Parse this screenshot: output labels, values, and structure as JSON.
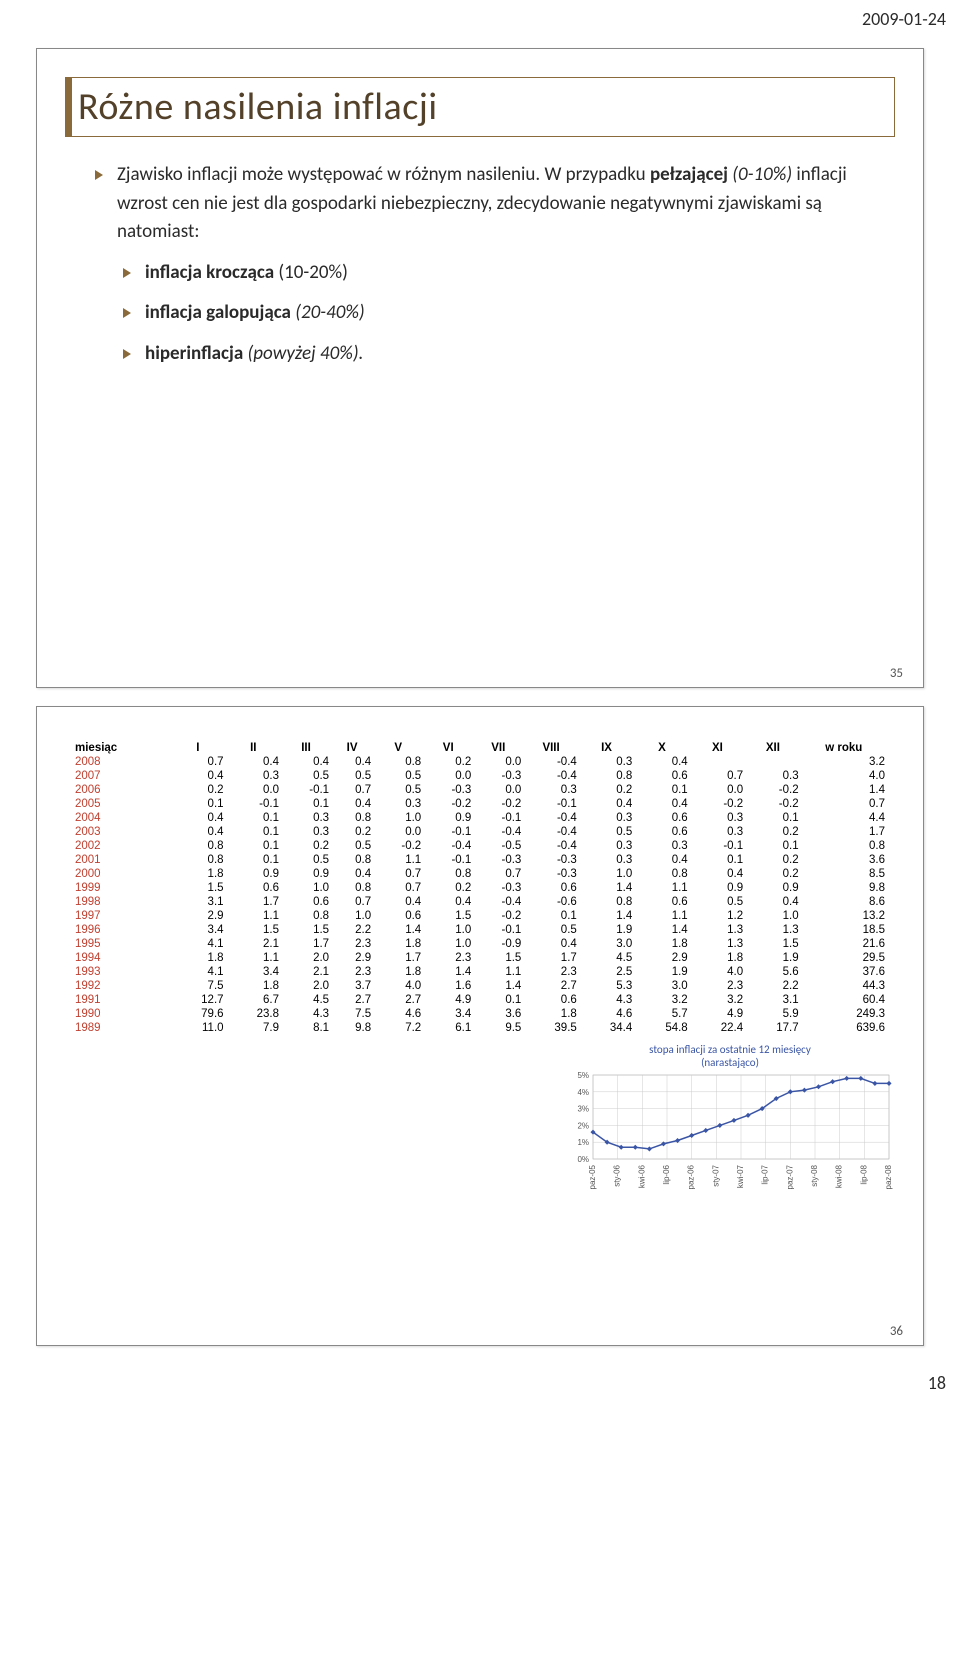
{
  "date": "2009-01-24",
  "footer_page": "18",
  "slide1": {
    "title": "Różne nasilenia inflacji",
    "intro": {
      "pre": "Zjawisko inflacji może występować w różnym nasileniu. W przypadku ",
      "b1": "pełzającej",
      "mid1": " ",
      "i1": "(0-10%)",
      "mid2": " inflacji wzrost cen nie jest dla gospodarki niebezpieczny, zdecydowanie negatywnymi zjawiskami są natomiast:"
    },
    "b1": {
      "bold": "inflacja krocząca",
      "rest": " (10-20%)"
    },
    "b2": {
      "bold": "inflacja galopująca",
      "rest_i": " (20-40%)"
    },
    "b3": {
      "bold": "hiperinflacja",
      "rest_i": " (powyżej 40%)."
    },
    "page": "35"
  },
  "slide2": {
    "page": "36",
    "table": {
      "columns": [
        "miesiąc",
        "I",
        "II",
        "III",
        "IV",
        "V",
        "VI",
        "VII",
        "VIII",
        "IX",
        "X",
        "XI",
        "XII",
        "w roku"
      ],
      "rows": [
        [
          "2008",
          "0.7",
          "0.4",
          "0.4",
          "0.4",
          "0.8",
          "0.2",
          "0.0",
          "-0.4",
          "0.3",
          "0.4",
          "",
          "",
          "3.2"
        ],
        [
          "2007",
          "0.4",
          "0.3",
          "0.5",
          "0.5",
          "0.5",
          "0.0",
          "-0.3",
          "-0.4",
          "0.8",
          "0.6",
          "0.7",
          "0.3",
          "4.0"
        ],
        [
          "2006",
          "0.2",
          "0.0",
          "-0.1",
          "0.7",
          "0.5",
          "-0.3",
          "0.0",
          "0.3",
          "0.2",
          "0.1",
          "0.0",
          "-0.2",
          "1.4"
        ],
        [
          "2005",
          "0.1",
          "-0.1",
          "0.1",
          "0.4",
          "0.3",
          "-0.2",
          "-0.2",
          "-0.1",
          "0.4",
          "0.4",
          "-0.2",
          "-0.2",
          "0.7"
        ],
        [
          "2004",
          "0.4",
          "0.1",
          "0.3",
          "0.8",
          "1.0",
          "0.9",
          "-0.1",
          "-0.4",
          "0.3",
          "0.6",
          "0.3",
          "0.1",
          "4.4"
        ],
        [
          "2003",
          "0.4",
          "0.1",
          "0.3",
          "0.2",
          "0.0",
          "-0.1",
          "-0.4",
          "-0.4",
          "0.5",
          "0.6",
          "0.3",
          "0.2",
          "1.7"
        ],
        [
          "2002",
          "0.8",
          "0.1",
          "0.2",
          "0.5",
          "-0.2",
          "-0.4",
          "-0.5",
          "-0.4",
          "0.3",
          "0.3",
          "-0.1",
          "0.1",
          "0.8"
        ],
        [
          "2001",
          "0.8",
          "0.1",
          "0.5",
          "0.8",
          "1.1",
          "-0.1",
          "-0.3",
          "-0.3",
          "0.3",
          "0.4",
          "0.1",
          "0.2",
          "3.6"
        ],
        [
          "2000",
          "1.8",
          "0.9",
          "0.9",
          "0.4",
          "0.7",
          "0.8",
          "0.7",
          "-0.3",
          "1.0",
          "0.8",
          "0.4",
          "0.2",
          "8.5"
        ],
        [
          "1999",
          "1.5",
          "0.6",
          "1.0",
          "0.8",
          "0.7",
          "0.2",
          "-0.3",
          "0.6",
          "1.4",
          "1.1",
          "0.9",
          "0.9",
          "9.8"
        ],
        [
          "1998",
          "3.1",
          "1.7",
          "0.6",
          "0.7",
          "0.4",
          "0.4",
          "-0.4",
          "-0.6",
          "0.8",
          "0.6",
          "0.5",
          "0.4",
          "8.6"
        ],
        [
          "1997",
          "2.9",
          "1.1",
          "0.8",
          "1.0",
          "0.6",
          "1.5",
          "-0.2",
          "0.1",
          "1.4",
          "1.1",
          "1.2",
          "1.0",
          "13.2"
        ],
        [
          "1996",
          "3.4",
          "1.5",
          "1.5",
          "2.2",
          "1.4",
          "1.0",
          "-0.1",
          "0.5",
          "1.9",
          "1.4",
          "1.3",
          "1.3",
          "18.5"
        ],
        [
          "1995",
          "4.1",
          "2.1",
          "1.7",
          "2.3",
          "1.8",
          "1.0",
          "-0.9",
          "0.4",
          "3.0",
          "1.8",
          "1.3",
          "1.5",
          "21.6"
        ],
        [
          "1994",
          "1.8",
          "1.1",
          "2.0",
          "2.9",
          "1.7",
          "2.3",
          "1.5",
          "1.7",
          "4.5",
          "2.9",
          "1.8",
          "1.9",
          "29.5"
        ],
        [
          "1993",
          "4.1",
          "3.4",
          "2.1",
          "2.3",
          "1.8",
          "1.4",
          "1.1",
          "2.3",
          "2.5",
          "1.9",
          "4.0",
          "5.6",
          "37.6"
        ],
        [
          "1992",
          "7.5",
          "1.8",
          "2.0",
          "3.7",
          "4.0",
          "1.6",
          "1.4",
          "2.7",
          "5.3",
          "3.0",
          "2.3",
          "2.2",
          "44.3"
        ],
        [
          "1991",
          "12.7",
          "6.7",
          "4.5",
          "2.7",
          "2.7",
          "4.9",
          "0.1",
          "0.6",
          "4.3",
          "3.2",
          "3.2",
          "3.1",
          "60.4"
        ],
        [
          "1990",
          "79.6",
          "23.8",
          "4.3",
          "7.5",
          "4.6",
          "3.4",
          "3.6",
          "1.8",
          "4.6",
          "5.7",
          "4.9",
          "5.9",
          "249.3"
        ],
        [
          "1989",
          "11.0",
          "7.9",
          "8.1",
          "9.8",
          "7.2",
          "6.1",
          "9.5",
          "39.5",
          "34.4",
          "54.8",
          "22.4",
          "17.7",
          "639.6"
        ]
      ]
    },
    "chart": {
      "title_l1": "stopa inflacji za ostatnie 12 miesięcy",
      "title_l2": "(narastająco)",
      "ylabels": [
        "0%",
        "1%",
        "2%",
        "3%",
        "4%",
        "5%"
      ],
      "ylim": [
        0,
        5
      ],
      "xlabels": [
        "paz-05",
        "sty-06",
        "kwi-06",
        "lip-06",
        "paz-06",
        "sty-07",
        "kwi-07",
        "lip-07",
        "paz-07",
        "sty-08",
        "kwi-08",
        "lip-08",
        "paz-08"
      ],
      "line_color": "#3a55a5",
      "marker_color": "#3a55a5",
      "grid_color": "#cccccc",
      "bg": "#ffffff",
      "series": [
        1.6,
        1.0,
        0.7,
        0.7,
        0.6,
        0.9,
        1.1,
        1.4,
        1.7,
        2.0,
        2.3,
        2.6,
        3.0,
        3.6,
        4.0,
        4.1,
        4.3,
        4.6,
        4.8,
        4.8,
        4.5,
        4.5
      ]
    }
  }
}
